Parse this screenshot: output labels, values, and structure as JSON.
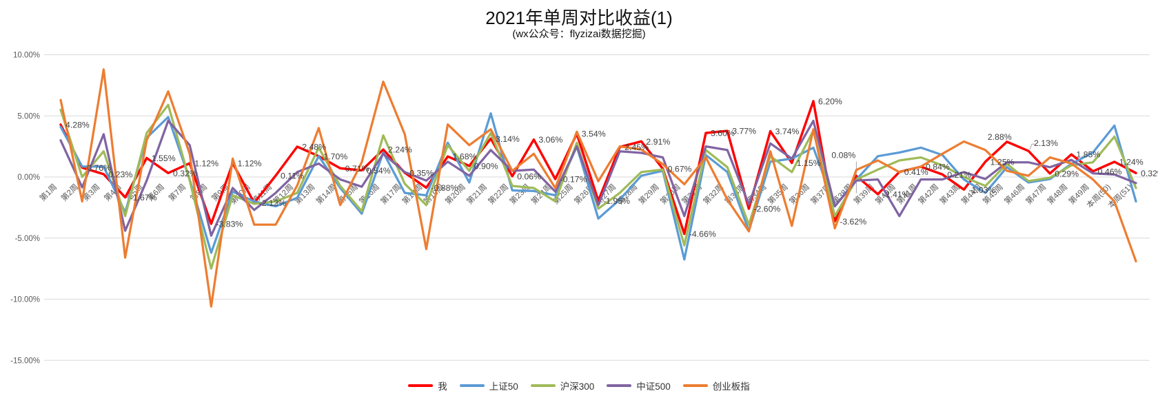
{
  "chart_data": {
    "type": "line",
    "title": "2021年单周对比收益(1)",
    "subtitle": "(wx公众号：flyzizai数据挖掘)",
    "legend_position": "bottom",
    "grid": true,
    "y_axis": {
      "min": -15,
      "max": 10,
      "step": 5,
      "format": "percent_2dp",
      "tick_labels": [
        "10.00%",
        "5.00%",
        "0.00%",
        "-5.00%",
        "-10.00%",
        "-15.00%"
      ],
      "tick_values": [
        10,
        5,
        0,
        -5,
        -10,
        -15
      ]
    },
    "categories": [
      "第1周",
      "第2周",
      "第3周",
      "第4周",
      "第5周",
      "第6周",
      "第7周",
      "第8周",
      "第9周",
      "第10周",
      "第11周",
      "第12周",
      "第13周",
      "第14周",
      "第15周",
      "第16周",
      "第17周",
      "第18周",
      "第19周",
      "第20周",
      "第21周",
      "第22周",
      "第23周",
      "第24周",
      "第25周",
      "第26周",
      "第27周",
      "第28周",
      "第29周",
      "第30周",
      "第31周",
      "第32周",
      "第33周",
      "第34周",
      "第35周",
      "第36周",
      "第37周",
      "第38周",
      "第39周",
      "第40周",
      "第41周",
      "第42周",
      "第43周",
      "第44周",
      "第45周",
      "第46周",
      "第47周",
      "第48周",
      "第49周",
      "本周(50)",
      "本周(51)"
    ],
    "series": [
      {
        "name": "我",
        "color": "#FF0000",
        "width": 3.5,
        "data_labels": true,
        "values": [
          4.28,
          0.76,
          0.23,
          -1.67,
          1.55,
          0.32,
          1.12,
          -3.83,
          1.12,
          -2.12,
          0.11,
          2.48,
          1.7,
          0.71,
          0.54,
          2.24,
          0.35,
          -0.88,
          1.68,
          0.9,
          3.14,
          0.06,
          3.06,
          -0.17,
          3.54,
          -1.95,
          2.45,
          2.91,
          0.67,
          -4.66,
          3.6,
          3.77,
          -2.6,
          3.74,
          1.15,
          6.2,
          -3.62,
          0.08,
          -1.41,
          0.41,
          0.84,
          0.21,
          -1.03,
          1.25,
          2.88,
          2.13,
          0.29,
          1.85,
          0.46,
          1.24,
          0.32
        ]
      },
      {
        "name": "上证50",
        "color": "#5B9BD5",
        "width": 3.25,
        "data_labels": false,
        "values": [
          4.1,
          0.85,
          0.85,
          -2.9,
          3.2,
          4.9,
          -0.2,
          -6.2,
          -1.2,
          -2.0,
          -2.4,
          -1.7,
          1.7,
          -0.9,
          -3.0,
          2.0,
          -1.3,
          -1.5,
          2.8,
          -0.45,
          5.2,
          -1.1,
          -1.15,
          -1.5,
          2.5,
          -3.4,
          -1.85,
          0.1,
          0.5,
          -6.75,
          1.8,
          0.4,
          -4.4,
          1.25,
          1.5,
          2.4,
          -2.4,
          -0.2,
          1.7,
          2.0,
          2.4,
          1.8,
          -0.2,
          -1.3,
          0.8,
          -0.45,
          -0.17,
          1.07,
          2.0,
          4.2,
          -2.0
        ]
      },
      {
        "name": "沪深300",
        "color": "#9FBB59",
        "width": 3.25,
        "data_labels": false,
        "values": [
          5.5,
          0.0,
          2.1,
          -3.2,
          3.6,
          5.9,
          -0.3,
          -7.5,
          -1.5,
          -2.2,
          -2.0,
          -1.3,
          2.4,
          -0.73,
          -2.8,
          3.4,
          -0.55,
          -2.3,
          2.6,
          0.5,
          3.6,
          -0.73,
          -0.9,
          -2.0,
          2.8,
          -2.6,
          -1.3,
          0.4,
          0.6,
          -5.6,
          2.2,
          0.8,
          -3.9,
          1.7,
          0.4,
          3.8,
          -3.2,
          -0.2,
          0.6,
          1.35,
          1.6,
          0.95,
          0.0,
          -0.73,
          1.07,
          -0.34,
          -0.06,
          0.95,
          1.2,
          3.3,
          -0.9
        ]
      },
      {
        "name": "中证500",
        "color": "#8064A2",
        "width": 3.25,
        "data_labels": false,
        "values": [
          3.0,
          -0.85,
          3.5,
          -4.4,
          -0.3,
          4.6,
          2.6,
          -4.8,
          -0.9,
          -2.7,
          -1.3,
          0.4,
          1.1,
          -0.2,
          -0.8,
          1.9,
          0.4,
          -0.3,
          1.25,
          0.1,
          2.2,
          0.5,
          0.6,
          -1.2,
          2.5,
          -2.3,
          2.1,
          1.97,
          1.6,
          -3.2,
          2.5,
          2.2,
          -2.25,
          2.75,
          1.5,
          4.6,
          -2.4,
          -0.3,
          -0.2,
          -3.2,
          -0.2,
          -0.2,
          0.4,
          -0.17,
          1.2,
          1.2,
          0.8,
          1.4,
          0.3,
          0.2,
          -0.5
        ]
      },
      {
        "name": "创业板指",
        "color": "#ED7D31",
        "width": 3.25,
        "data_labels": false,
        "values": [
          6.3,
          -2.0,
          8.8,
          -6.6,
          3.0,
          7.0,
          1.9,
          -10.6,
          1.5,
          -3.9,
          -3.9,
          -0.7,
          4.0,
          -2.3,
          1.2,
          7.8,
          3.5,
          -5.9,
          4.3,
          2.6,
          3.9,
          0.5,
          1.9,
          -0.9,
          3.7,
          -0.35,
          2.5,
          2.25,
          1.05,
          -0.6,
          1.6,
          -1.85,
          -4.45,
          2.1,
          -4.0,
          3.9,
          -4.2,
          0.58,
          1.35,
          0.4,
          0.85,
          1.9,
          2.9,
          2.2,
          0.5,
          0.1,
          1.6,
          1.1,
          -0.2,
          -2.0,
          -6.9
        ]
      }
    ],
    "colors": {
      "background": "#FFFFFF",
      "grid": "#D9D9D9",
      "axis_text": "#595959",
      "data_label_text": "#404040",
      "leader_line": "#A6A6A6"
    }
  }
}
